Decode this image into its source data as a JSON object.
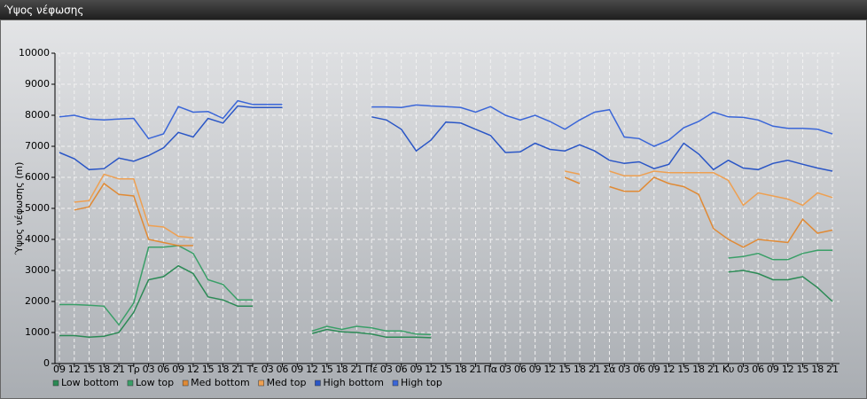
{
  "chart_data": {
    "type": "line",
    "title": "Ύψος νέφωσης",
    "y_label": "Ύψος νέφωσης (m)",
    "categories": [
      "09",
      "12",
      "15",
      "18",
      "21",
      "Τρ",
      "03",
      "06",
      "09",
      "12",
      "15",
      "18",
      "21",
      "Τε",
      "03",
      "06",
      "09",
      "12",
      "15",
      "18",
      "21",
      "Πέ",
      "03",
      "06",
      "09",
      "12",
      "15",
      "18",
      "21",
      "Πα",
      "03",
      "06",
      "09",
      "12",
      "15",
      "18",
      "21",
      "Σά",
      "03",
      "06",
      "09",
      "12",
      "15",
      "18",
      "21",
      "Κυ",
      "03",
      "06",
      "09",
      "12",
      "15",
      "18",
      "21"
    ],
    "ylim": [
      0,
      10000
    ],
    "yticks": [
      0,
      1000,
      2000,
      3000,
      4000,
      5000,
      6000,
      7000,
      8000,
      9000,
      10000
    ],
    "grid": true,
    "series": [
      {
        "name": "Low bottom",
        "color": "#2b8a55",
        "values": [
          900,
          900,
          850,
          880,
          1000,
          1650,
          2700,
          2800,
          3150,
          2900,
          2150,
          2050,
          1850,
          1850,
          null,
          null,
          null,
          970,
          1100,
          1020,
          1000,
          950,
          850,
          850,
          850,
          830,
          null,
          null,
          null,
          null,
          null,
          null,
          null,
          null,
          null,
          null,
          null,
          null,
          null,
          null,
          null,
          null,
          null,
          null,
          null,
          2950,
          3000,
          2900,
          2700,
          2700,
          2800,
          2450,
          2000
        ]
      },
      {
        "name": "Low top",
        "color": "#3a9f68",
        "values": [
          1900,
          1900,
          1880,
          1850,
          1250,
          1950,
          3750,
          3750,
          3800,
          3550,
          2700,
          2550,
          2050,
          2050,
          null,
          null,
          null,
          1050,
          1200,
          1100,
          1200,
          1150,
          1050,
          1050,
          950,
          930,
          null,
          null,
          null,
          null,
          null,
          null,
          null,
          null,
          null,
          null,
          null,
          null,
          null,
          null,
          null,
          null,
          null,
          null,
          null,
          3400,
          3450,
          3550,
          3350,
          3350,
          3550,
          3650,
          3650
        ]
      },
      {
        "name": "Med bottom",
        "color": "#e08a35",
        "values": [
          null,
          4950,
          5050,
          5800,
          5450,
          5400,
          4000,
          3900,
          3800,
          3800,
          null,
          null,
          null,
          null,
          null,
          null,
          null,
          null,
          null,
          null,
          null,
          null,
          null,
          null,
          null,
          null,
          null,
          null,
          null,
          null,
          null,
          null,
          null,
          null,
          6000,
          5800,
          null,
          5700,
          5550,
          5550,
          6000,
          5800,
          5700,
          5450,
          4350,
          4000,
          3750,
          4000,
          3950,
          3900,
          4650,
          4200,
          4300
        ]
      },
      {
        "name": "Med top",
        "color": "#eea052",
        "values": [
          null,
          5200,
          5250,
          6100,
          5950,
          5950,
          4450,
          4400,
          4100,
          4050,
          null,
          null,
          null,
          null,
          null,
          null,
          null,
          null,
          null,
          null,
          null,
          null,
          null,
          null,
          null,
          null,
          null,
          null,
          null,
          null,
          null,
          null,
          null,
          null,
          6200,
          6100,
          null,
          6200,
          6050,
          6050,
          6200,
          6150,
          6150,
          6150,
          6150,
          5900,
          5100,
          5500,
          5400,
          5300,
          5100,
          5500,
          5350
        ]
      },
      {
        "name": "High bottom",
        "color": "#2a56c6",
        "values": [
          6800,
          6600,
          6250,
          6280,
          6620,
          6520,
          6700,
          6950,
          7450,
          7300,
          7900,
          7750,
          8300,
          8250,
          8250,
          8250,
          null,
          null,
          null,
          null,
          null,
          7950,
          7850,
          7550,
          6850,
          7200,
          7780,
          7750,
          7550,
          7350,
          6800,
          6820,
          7100,
          6900,
          6850,
          7050,
          6850,
          6550,
          6450,
          6500,
          6280,
          6420,
          7100,
          6750,
          6250,
          6550,
          6300,
          6250,
          6450,
          6550,
          6420,
          6300,
          6200
        ]
      },
      {
        "name": "High top",
        "color": "#3a66d8",
        "values": [
          7950,
          8000,
          7880,
          7850,
          7880,
          7900,
          7250,
          7400,
          8280,
          8100,
          8120,
          7900,
          8470,
          8350,
          8350,
          8350,
          null,
          null,
          null,
          null,
          null,
          8270,
          8270,
          8250,
          8330,
          8300,
          8280,
          8250,
          8100,
          8280,
          8000,
          7850,
          8000,
          7800,
          7550,
          7850,
          8100,
          8180,
          7300,
          7250,
          7000,
          7200,
          7600,
          7800,
          8100,
          7950,
          7930,
          7850,
          7650,
          7580,
          7580,
          7550,
          7400
        ]
      }
    ]
  }
}
